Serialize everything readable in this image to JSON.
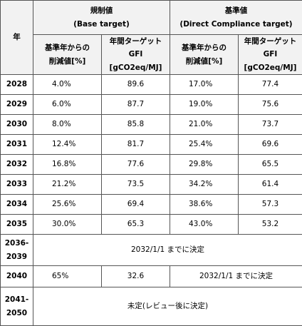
{
  "table": {
    "header": {
      "year": "年",
      "base": "規制値\n(Base target)",
      "direct": "基準値\n(Direct Compliance target)",
      "sub": [
        "基準年からの\n削減値[%]",
        "年間ターゲット GFI\n[gCO2eq/MJ]",
        "基準年からの\n削減値[%]",
        "年間ターゲット GFI\n[gCO2eq/MJ]"
      ]
    },
    "rows": [
      [
        "2028",
        "4.0%",
        "89.6",
        "17.0%",
        "77.4"
      ],
      [
        "2029",
        "6.0%",
        "87.7",
        "19.0%",
        "75.6"
      ],
      [
        "2030",
        "8.0%",
        "85.8",
        "21.0%",
        "73.7"
      ],
      [
        "2031",
        "12.4%",
        "81.7",
        "25.4%",
        "69.6"
      ],
      [
        "2032",
        "16.8%",
        "77.6",
        "29.8%",
        "65.5"
      ],
      [
        "2033",
        "21.2%",
        "73.5",
        "34.2%",
        "61.4"
      ],
      [
        "2034",
        "25.6%",
        "69.4",
        "38.6%",
        "57.3"
      ],
      [
        "2035",
        "30.0%",
        "65.3",
        "43.0%",
        "53.2"
      ]
    ],
    "row_2036": [
      "2036-\n2039",
      "2032/1/1 までに決定"
    ],
    "row_2040": [
      "2040",
      "65%",
      "32.6",
      "2032/1/1 までに決定"
    ],
    "row_2041": [
      "2041-\n2050",
      "未定(レビュー後に決定)"
    ]
  }
}
